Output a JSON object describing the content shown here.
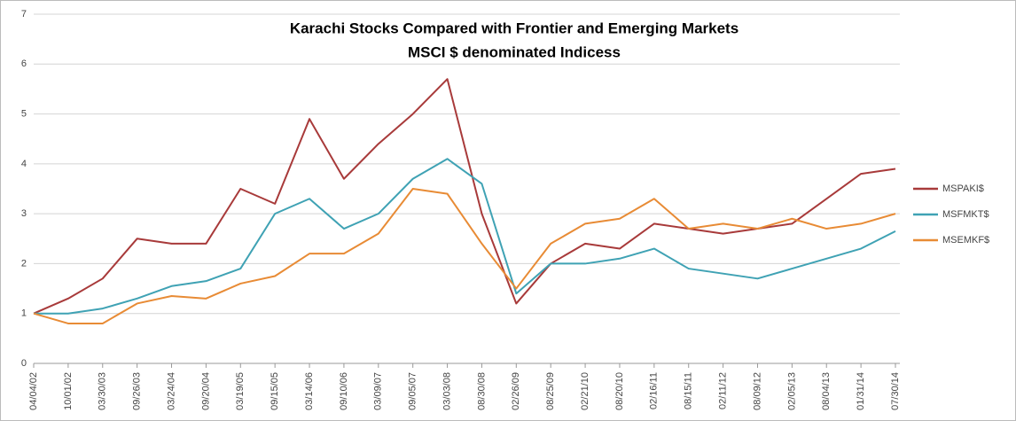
{
  "chart_data": {
    "type": "line",
    "title": "Karachi Stocks Compared with Frontier and Emerging Markets",
    "subtitle": "MSCI $ denominated Indicess",
    "categories": [
      "04/04/02",
      "10/01/02",
      "03/30/03",
      "09/26/03",
      "03/24/04",
      "09/20/04",
      "03/19/05",
      "09/15/05",
      "03/14/06",
      "09/10/06",
      "03/09/07",
      "09/05/07",
      "03/03/08",
      "08/30/08",
      "02/26/09",
      "08/25/09",
      "02/21/10",
      "08/20/10",
      "02/16/11",
      "08/15/11",
      "02/11/12",
      "08/09/12",
      "02/05/13",
      "08/04/13",
      "01/31/14",
      "07/30/14"
    ],
    "series": [
      {
        "name": "MSPAKI$",
        "color": "#a83a3a",
        "values": [
          1.0,
          1.3,
          1.7,
          2.5,
          2.4,
          2.4,
          3.5,
          3.2,
          4.9,
          3.7,
          4.4,
          5.0,
          5.7,
          3.0,
          1.2,
          2.0,
          2.4,
          2.3,
          2.8,
          2.7,
          2.6,
          2.7,
          2.8,
          3.3,
          3.8,
          3.9
        ]
      },
      {
        "name": "MSFMKT$",
        "color": "#3fa2b4",
        "values": [
          1.0,
          1.0,
          1.1,
          1.3,
          1.55,
          1.65,
          1.9,
          3.0,
          3.3,
          2.7,
          3.0,
          3.7,
          4.1,
          3.6,
          1.4,
          2.0,
          2.0,
          2.1,
          2.3,
          1.9,
          1.8,
          1.7,
          1.9,
          2.1,
          2.3,
          2.65
        ]
      },
      {
        "name": "MSEMKF$",
        "color": "#e88b35",
        "values": [
          1.0,
          0.8,
          0.8,
          1.2,
          1.35,
          1.3,
          1.6,
          1.75,
          2.2,
          2.2,
          2.6,
          3.5,
          3.4,
          2.4,
          1.5,
          2.4,
          2.8,
          2.9,
          3.3,
          2.7,
          2.8,
          2.7,
          2.9,
          2.7,
          2.8,
          3.0
        ]
      }
    ],
    "ylim": [
      0,
      7
    ],
    "yticks": [
      0,
      1,
      2,
      3,
      4,
      5,
      6,
      7
    ],
    "grid": true,
    "legend": "right"
  }
}
